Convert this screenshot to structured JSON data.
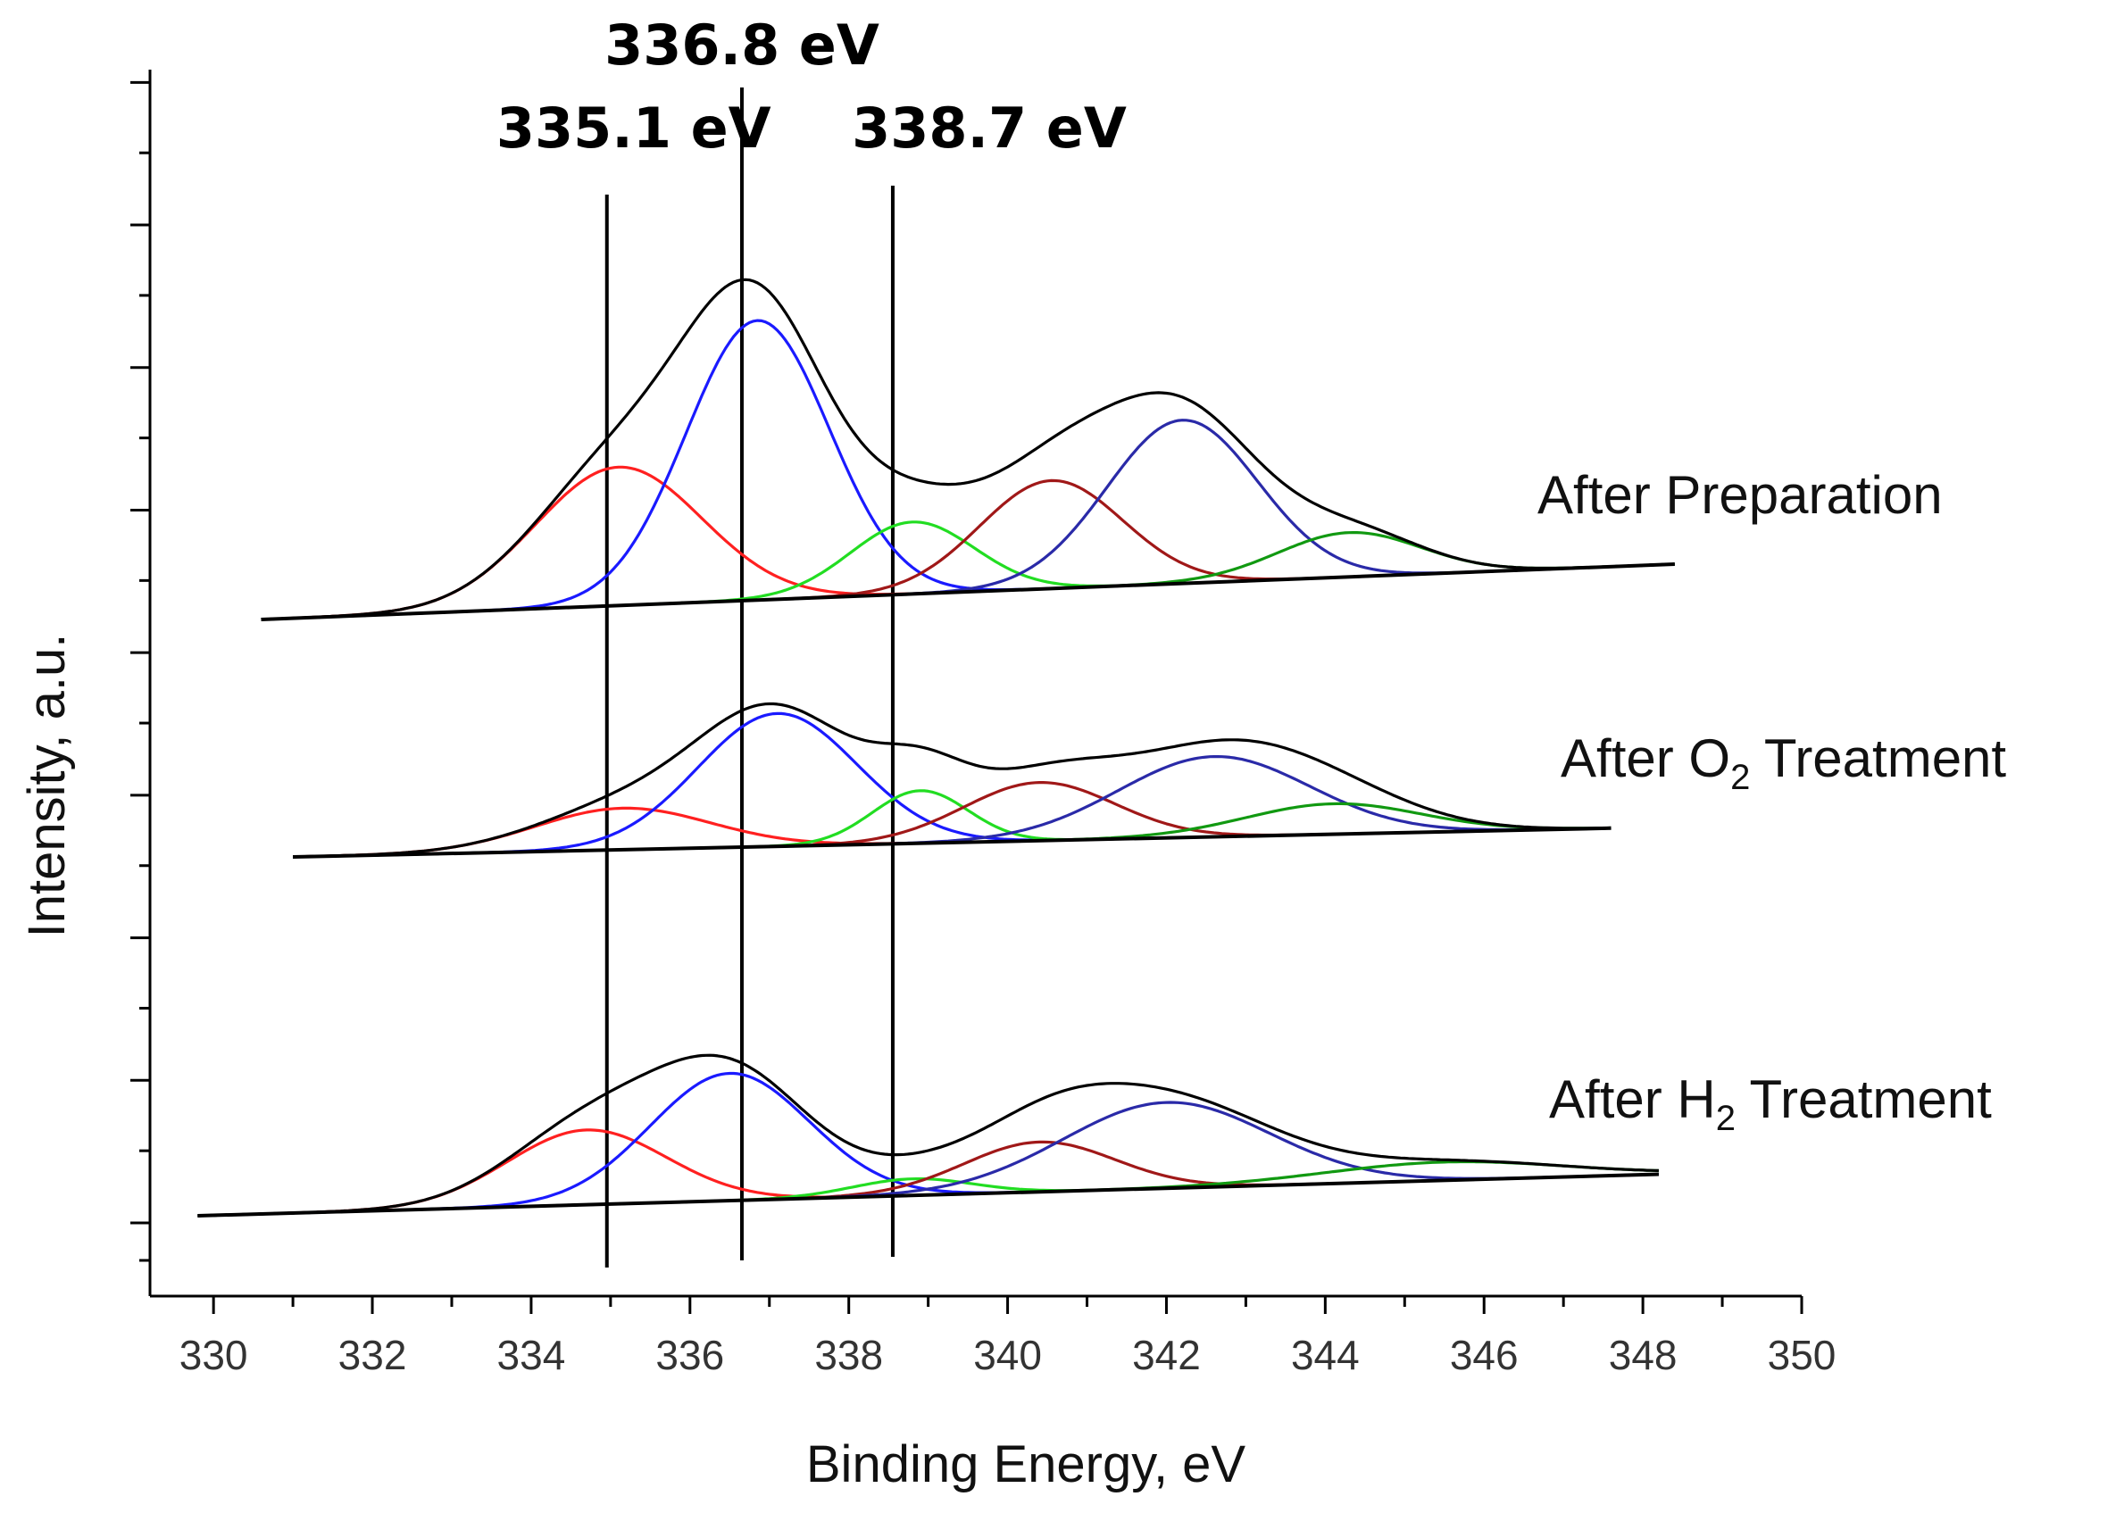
{
  "chart_data": {
    "type": "line",
    "title": "",
    "xlabel": "Binding Energy, eV",
    "ylabel": "Intensity, a.u.",
    "xlim": [
      329.2,
      350
    ],
    "x_ticks": [
      "330",
      "332",
      "334",
      "336",
      "338",
      "340",
      "342",
      "344",
      "346",
      "348",
      "350"
    ],
    "y_ticks_major_count": 9,
    "grid": false,
    "legend": "none",
    "colors": {
      "envelope": "#000000",
      "red": "#ff2020",
      "blue": "#1a1aff",
      "green": "#22dd22",
      "brown": "#a01818",
      "darkblue": "#2a2aa8",
      "darkgreen": "#119911",
      "baseline": "#000000"
    },
    "reference_lines": [
      {
        "x": 335.1,
        "label": "335.1 eV"
      },
      {
        "x": 336.8,
        "label": "336.8 eV"
      },
      {
        "x": 338.7,
        "label": "338.7 eV"
      }
    ],
    "spectra": [
      {
        "name": "After Preparation",
        "label_main": "After Preparation",
        "label_sub": "",
        "label_suffix": "",
        "x_start": 330.6,
        "x_end": 348.4,
        "baseline": [
          0.18,
          1.18
        ],
        "peaks": [
          {
            "name": "red",
            "center": 335.1,
            "height": 2.5,
            "sigma": 1.05
          },
          {
            "name": "blue",
            "center": 336.85,
            "height": 5.05,
            "sigma": 0.9
          },
          {
            "name": "green",
            "center": 338.8,
            "height": 1.3,
            "sigma": 0.78
          },
          {
            "name": "brown",
            "center": 340.55,
            "height": 1.95,
            "sigma": 0.9
          },
          {
            "name": "darkblue",
            "center": 342.2,
            "height": 2.95,
            "sigma": 0.95
          },
          {
            "name": "darkgreen",
            "center": 344.3,
            "height": 0.8,
            "sigma": 0.9
          }
        ]
      },
      {
        "name": "After O2 Treatment",
        "label_main": "After O",
        "label_sub": "2",
        "label_suffix": " Treatment",
        "x_start": 331.0,
        "x_end": 347.6,
        "baseline": [
          0.18,
          0.7
        ],
        "peaks": [
          {
            "name": "red",
            "center": 335.15,
            "height": 0.75,
            "sigma": 1.1
          },
          {
            "name": "blue",
            "center": 337.1,
            "height": 2.4,
            "sigma": 1.0
          },
          {
            "name": "green",
            "center": 338.9,
            "height": 0.95,
            "sigma": 0.6
          },
          {
            "name": "brown",
            "center": 340.4,
            "height": 1.05,
            "sigma": 0.95
          },
          {
            "name": "darkblue",
            "center": 342.6,
            "height": 1.45,
            "sigma": 1.2
          },
          {
            "name": "darkgreen",
            "center": 344.1,
            "height": 0.55,
            "sigma": 1.1
          }
        ]
      },
      {
        "name": "After H2 Treatment",
        "label_main": "After H",
        "label_sub": "2",
        "label_suffix": " Treatment",
        "x_start": 329.8,
        "x_end": 348.2,
        "baseline": [
          0.0,
          0.75
        ],
        "peaks": [
          {
            "name": "red",
            "center": 334.7,
            "height": 1.35,
            "sigma": 1.0
          },
          {
            "name": "blue",
            "center": 336.5,
            "height": 2.3,
            "sigma": 1.0
          },
          {
            "name": "green",
            "center": 338.8,
            "height": 0.3,
            "sigma": 0.75
          },
          {
            "name": "brown",
            "center": 340.4,
            "height": 0.9,
            "sigma": 0.95
          },
          {
            "name": "darkblue",
            "center": 342.0,
            "height": 1.55,
            "sigma": 1.3
          },
          {
            "name": "darkgreen",
            "center": 345.5,
            "height": 0.33,
            "sigma": 1.5
          }
        ]
      }
    ]
  }
}
